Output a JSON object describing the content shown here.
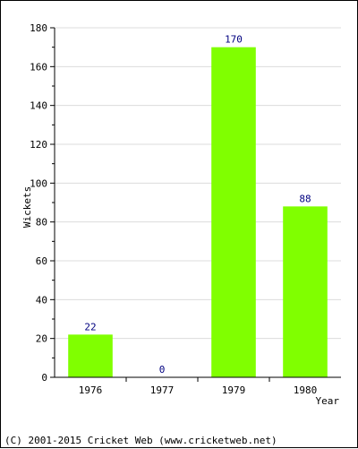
{
  "chart_data": {
    "type": "bar",
    "categories": [
      "1976",
      "1977",
      "1979",
      "1980"
    ],
    "values": [
      22,
      0,
      170,
      88
    ],
    "value_labels": [
      "22",
      "0",
      "170",
      "88"
    ],
    "xlabel": "Year",
    "ylabel": "Wickets",
    "ylim": [
      0,
      180
    ],
    "yticks": [
      0,
      20,
      40,
      60,
      80,
      100,
      120,
      140,
      160,
      180
    ],
    "grid": true,
    "bar_color": "#80ff00",
    "label_color": "#000080",
    "grid_color": "#dcdcdc"
  },
  "footer": {
    "copyright": "(C) 2001-2015 Cricket Web (www.cricketweb.net)"
  }
}
